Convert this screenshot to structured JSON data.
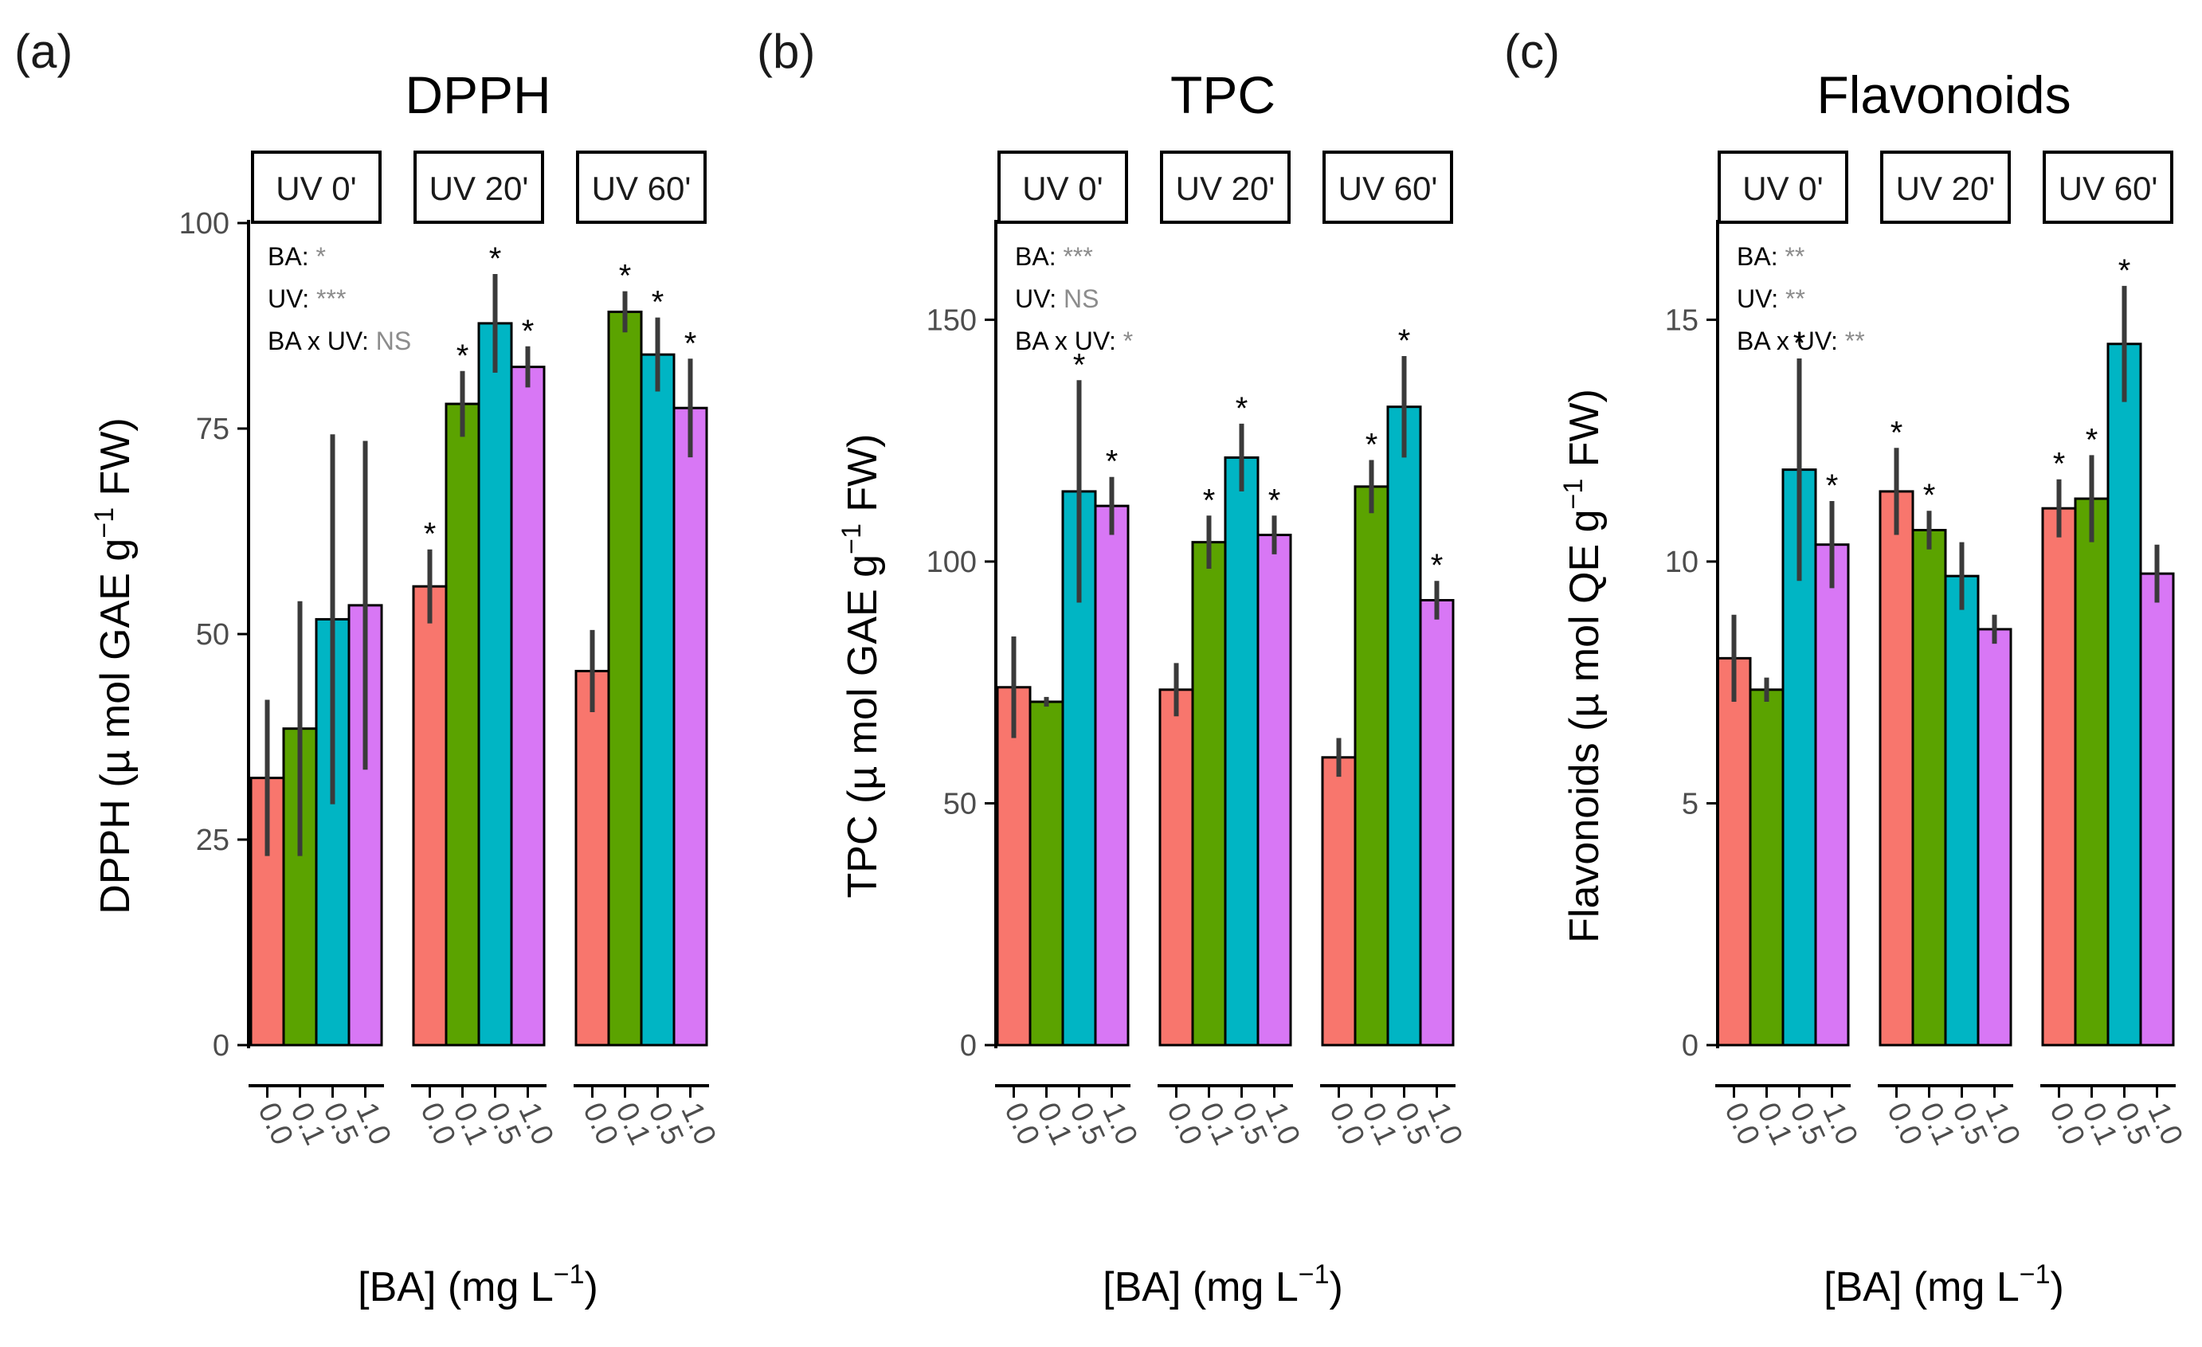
{
  "chart_data": [
    {
      "type": "bar",
      "panel_label": "(a)",
      "title": "DPPH",
      "facets": [
        "UV 0'",
        "UV 20'",
        "UV 60'"
      ],
      "categories": [
        "0.0",
        "0.1",
        "0.5",
        "1.0"
      ],
      "colors": [
        "#F8766D",
        "#5BA300",
        "#00B5C4",
        "#D877F5"
      ],
      "values": [
        [
          32.5,
          38.5,
          51.8,
          53.5
        ],
        [
          55.8,
          78.0,
          87.8,
          82.5
        ],
        [
          45.5,
          89.2,
          84.0,
          77.5
        ]
      ],
      "errors": [
        [
          9.5,
          15.5,
          22.5,
          20.0
        ],
        [
          4.5,
          4.0,
          6.0,
          2.5
        ],
        [
          5.0,
          2.5,
          4.5,
          6.0
        ]
      ],
      "sig": [
        [
          false,
          false,
          false,
          false
        ],
        [
          true,
          true,
          true,
          true
        ],
        [
          false,
          true,
          true,
          true
        ]
      ],
      "ylim": [
        0,
        100
      ],
      "yticks": [
        0,
        25,
        50,
        75,
        100
      ],
      "ylabel": {
        "prefix": "DPPH  (µ mol GAE g",
        "sup": "−1",
        "suffix": " FW)"
      },
      "xlabel": {
        "prefix": "[BA] (mg L",
        "sup": "−1",
        "suffix": ")"
      },
      "annotations": [
        {
          "label": "BA: ",
          "sig": "*"
        },
        {
          "label": "UV: ",
          "sig": "***"
        },
        {
          "label": "BA x UV: ",
          "sig": "NS"
        }
      ]
    },
    {
      "type": "bar",
      "panel_label": "(b)",
      "title": "TPC",
      "facets": [
        "UV 0'",
        "UV 20'",
        "UV 60'"
      ],
      "categories": [
        "0.0",
        "0.1",
        "0.5",
        "1.0"
      ],
      "colors": [
        "#F8766D",
        "#5BA300",
        "#00B5C4",
        "#D877F5"
      ],
      "values": [
        [
          74.0,
          71.0,
          114.5,
          111.5
        ],
        [
          73.5,
          104.0,
          121.5,
          105.5
        ],
        [
          59.5,
          115.5,
          132.0,
          92.0
        ]
      ],
      "errors": [
        [
          10.5,
          1.0,
          23.0,
          6.0
        ],
        [
          5.5,
          5.5,
          7.0,
          4.0
        ],
        [
          4.0,
          5.5,
          10.5,
          4.0
        ]
      ],
      "sig": [
        [
          false,
          false,
          true,
          true
        ],
        [
          false,
          true,
          true,
          true
        ],
        [
          false,
          true,
          true,
          true
        ]
      ],
      "ylim": [
        0,
        170
      ],
      "yticks": [
        0,
        50,
        100,
        150
      ],
      "ylabel": {
        "prefix": "TPC  (µ mol GAE g",
        "sup": "−1",
        "suffix": " FW)"
      },
      "xlabel": {
        "prefix": "[BA] (mg L",
        "sup": "−1",
        "suffix": ")"
      },
      "annotations": [
        {
          "label": "BA: ",
          "sig": "***"
        },
        {
          "label": "UV: ",
          "sig": "NS"
        },
        {
          "label": "BA x UV: ",
          "sig": "*"
        }
      ]
    },
    {
      "type": "bar",
      "panel_label": "(c)",
      "title": "Flavonoids",
      "facets": [
        "UV 0'",
        "UV 20'",
        "UV 60'"
      ],
      "categories": [
        "0.0",
        "0.1",
        "0.5",
        "1.0"
      ],
      "colors": [
        "#F8766D",
        "#5BA300",
        "#00B5C4",
        "#D877F5"
      ],
      "values": [
        [
          8.0,
          7.35,
          11.9,
          10.35
        ],
        [
          11.45,
          10.65,
          9.7,
          8.6
        ],
        [
          11.1,
          11.3,
          14.5,
          9.75
        ]
      ],
      "errors": [
        [
          0.9,
          0.25,
          2.3,
          0.9
        ],
        [
          0.9,
          0.4,
          0.7,
          0.3
        ],
        [
          0.6,
          0.9,
          1.2,
          0.6
        ]
      ],
      "sig": [
        [
          false,
          false,
          true,
          true
        ],
        [
          true,
          true,
          false,
          false
        ],
        [
          true,
          true,
          true,
          false
        ]
      ],
      "ylim": [
        0,
        17
      ],
      "yticks": [
        0,
        5,
        10,
        15
      ],
      "ylabel": {
        "prefix": "Flavonoids  (µ mol QE g",
        "sup": "−1",
        "suffix": " FW)"
      },
      "xlabel": {
        "prefix": "[BA] (mg L",
        "sup": "−1",
        "suffix": ")"
      },
      "annotations": [
        {
          "label": "BA: ",
          "sig": "**"
        },
        {
          "label": "UV: ",
          "sig": "**"
        },
        {
          "label": "BA x UV: ",
          "sig": "**"
        }
      ]
    }
  ]
}
